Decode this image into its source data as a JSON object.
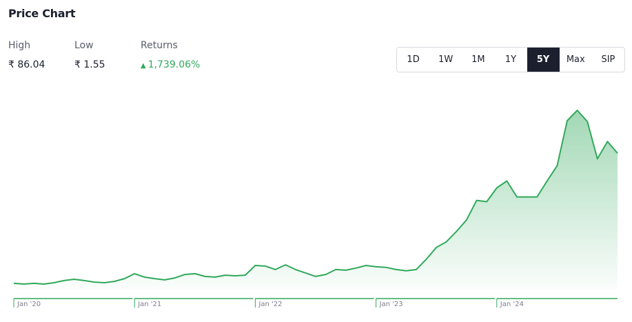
{
  "header": {
    "title": "Price Chart"
  },
  "stats": [
    {
      "label": "High",
      "value": "₹ 86.04"
    },
    {
      "label": "Low",
      "value": "₹ 1.55"
    },
    {
      "label": "Returns",
      "value": "1,739.06%"
    }
  ],
  "ranges": [
    "1D",
    "1W",
    "1M",
    "1Y",
    "5Y",
    "Max",
    "SIP"
  ],
  "active_range": "5Y",
  "chart_data": {
    "type": "line",
    "categories": [
      "Jan '20",
      null,
      null,
      null,
      null,
      null,
      null,
      null,
      null,
      null,
      null,
      null,
      "Jan '21",
      null,
      null,
      null,
      null,
      null,
      null,
      null,
      null,
      null,
      null,
      null,
      "Jan '22",
      null,
      null,
      null,
      null,
      null,
      null,
      null,
      null,
      null,
      null,
      null,
      "Jan '23",
      null,
      null,
      null,
      null,
      null,
      null,
      null,
      null,
      null,
      null,
      null,
      "Jan '24",
      null,
      null,
      null,
      null,
      null,
      null,
      null,
      null,
      null,
      null,
      null,
      null
    ],
    "series": [
      {
        "color": "#2fa85a",
        "values": [
          1.9,
          1.55,
          1.9,
          1.55,
          2.2,
          3.2,
          3.8,
          3.2,
          2.5,
          2.2,
          2.8,
          4.1,
          6.4,
          4.8,
          4.1,
          3.5,
          4.4,
          6.0,
          6.4,
          5.1,
          4.8,
          5.7,
          5.4,
          5.7,
          10.2,
          9.9,
          8.3,
          10.5,
          8.3,
          6.7,
          5.1,
          6.0,
          8.3,
          8.0,
          9.0,
          10.2,
          9.6,
          9.3,
          8.3,
          7.7,
          8.3,
          13.1,
          18.6,
          21.2,
          26.0,
          31.4,
          40.4,
          39.8,
          46.2,
          49.4,
          42.0,
          42.0,
          42.0,
          49.4,
          56.5,
          77.4,
          82.2,
          77.0,
          59.7,
          67.7,
          62.3
        ]
      }
    ],
    "ylim": [
      -1,
      95
    ],
    "area": true
  }
}
